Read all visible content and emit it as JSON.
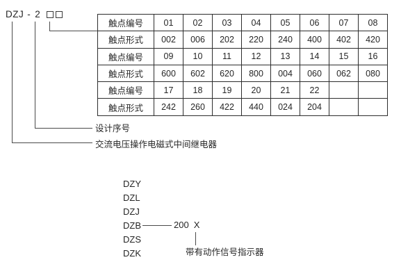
{
  "model": {
    "prefix": "DZJ",
    "separator": "-",
    "design_number": "2",
    "placeholder_box_count": 2
  },
  "table": {
    "rows": [
      {
        "header": "触点编号",
        "cells": [
          "01",
          "02",
          "03",
          "04",
          "05",
          "06",
          "07",
          "08"
        ]
      },
      {
        "header": "触点形式",
        "cells": [
          "002",
          "006",
          "202",
          "220",
          "240",
          "400",
          "402",
          "420"
        ]
      },
      {
        "header": "触点编号",
        "cells": [
          "09",
          "10",
          "11",
          "12",
          "13",
          "14",
          "15",
          "16"
        ]
      },
      {
        "header": "触点形式",
        "cells": [
          "600",
          "602",
          "620",
          "800",
          "004",
          "060",
          "062",
          "080"
        ]
      },
      {
        "header": "触点编号",
        "cells": [
          "17",
          "18",
          "19",
          "20",
          "21",
          "22",
          "",
          ""
        ]
      },
      {
        "header": "触点形式",
        "cells": [
          "242",
          "260",
          "422",
          "440",
          "024",
          "204",
          "",
          ""
        ]
      }
    ]
  },
  "callouts": {
    "design_serial_label": "设计序号",
    "relay_type_label": "交流电压操作电磁式中间继电器"
  },
  "model_family": {
    "items": [
      "DZY",
      "DZL",
      "DZJ",
      "DZB",
      "DZS",
      "DZK"
    ],
    "dzb_code": "200",
    "dzb_placeholder": "X",
    "indicator_label": "带有动作信号指示器"
  },
  "colors": {
    "text": "#262626",
    "line": "#4a4a4a",
    "table_border": "#2c2c2c",
    "background": "#ffffff"
  }
}
